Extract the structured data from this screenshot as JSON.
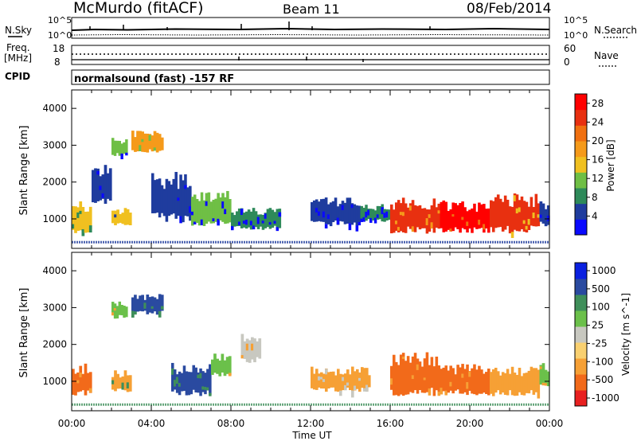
{
  "header": {
    "station": "McMurdo (fitACF)",
    "beam": "Beam 11",
    "date": "08/Feb/2014"
  },
  "noise_panel": {
    "left_label": "N.Sky",
    "right_label": "N.Search",
    "left_ticks": [
      "10^5",
      "10^0"
    ],
    "right_ticks": [
      "10^5",
      "10^0"
    ]
  },
  "freq_panel": {
    "left_label_1": "Freq.",
    "left_label_2": "[MHz]",
    "left_ticks": [
      "18",
      "8"
    ],
    "right_ticks": [
      "60",
      "0"
    ],
    "right_label": "Nave"
  },
  "cpid": {
    "label": "CPID",
    "text": "normalsound (fast) -157 RF"
  },
  "x_axis": {
    "label": "Time UT",
    "ticks": [
      "00:00",
      "04:00",
      "08:00",
      "12:00",
      "16:00",
      "20:00",
      "00:00"
    ]
  },
  "colors": {
    "power": [
      "#0a0aff",
      "#1f3c9e",
      "#2e8a5a",
      "#6fbf45",
      "#f0c020",
      "#f59a1a",
      "#f07010",
      "#e83010",
      "#ff0000"
    ],
    "velocity": [
      "#e82020",
      "#f26a1a",
      "#f6a035",
      "#f9d070",
      "#c8c8c0",
      "#6bc04a",
      "#3f8f5a",
      "#2a4aa0",
      "#0a20e0"
    ]
  },
  "chart_data": [
    {
      "type": "heatmap",
      "panel": "power",
      "title": "",
      "xlabel": "Time UT",
      "ylabel": "Slant Range [km]",
      "xlim": [
        "00:00",
        "24:00"
      ],
      "ylim": [
        200,
        4500
      ],
      "yticks": [
        1000,
        2000,
        3000,
        4000
      ],
      "colorbar": {
        "label": "Power [dB]",
        "ticks": [
          4,
          8,
          12,
          16,
          20,
          24,
          28
        ],
        "range": [
          0,
          30
        ]
      },
      "regions": [
        {
          "t0": 0.0,
          "t1": 1.0,
          "r0": 600,
          "r1": 1500,
          "value": 16
        },
        {
          "t0": 1.0,
          "t1": 2.0,
          "r0": 1400,
          "r1": 2500,
          "value": 4
        },
        {
          "t0": 2.0,
          "t1": 3.0,
          "r0": 800,
          "r1": 1300,
          "value": 14
        },
        {
          "t0": 2.0,
          "t1": 2.8,
          "r0": 2700,
          "r1": 3200,
          "value": 10
        },
        {
          "t0": 3.0,
          "t1": 4.6,
          "r0": 2800,
          "r1": 3400,
          "value": 18
        },
        {
          "t0": 4.0,
          "t1": 6.0,
          "r0": 900,
          "r1": 2300,
          "value": 6
        },
        {
          "t0": 6.0,
          "t1": 8.0,
          "r0": 800,
          "r1": 1800,
          "value": 10
        },
        {
          "t0": 8.0,
          "t1": 10.5,
          "r0": 700,
          "r1": 1300,
          "value": 8
        },
        {
          "t0": 12.0,
          "t1": 14.5,
          "r0": 800,
          "r1": 1600,
          "value": 6
        },
        {
          "t0": 14.5,
          "t1": 16.0,
          "r0": 900,
          "r1": 1400,
          "value": 8
        },
        {
          "t0": 16.0,
          "t1": 18.5,
          "r0": 600,
          "r1": 1600,
          "value": 26
        },
        {
          "t0": 18.5,
          "t1": 21.0,
          "r0": 600,
          "r1": 1500,
          "value": 28
        },
        {
          "t0": 21.0,
          "t1": 23.5,
          "r0": 600,
          "r1": 1700,
          "value": 24
        },
        {
          "t0": 23.5,
          "t1": 24.0,
          "r0": 800,
          "r1": 1500,
          "value": 6
        }
      ]
    },
    {
      "type": "heatmap",
      "panel": "velocity",
      "title": "",
      "xlabel": "Time UT",
      "ylabel": "Slant Range [km]",
      "xlim": [
        "00:00",
        "24:00"
      ],
      "ylim": [
        200,
        4500
      ],
      "yticks": [
        1000,
        2000,
        3000,
        4000
      ],
      "colorbar": {
        "label": "Velocity [m s^-1]",
        "ticks": [
          1000,
          500,
          100,
          25,
          -25,
          -100,
          -500,
          -1000
        ],
        "range": [
          -1000,
          1000
        ]
      },
      "regions": [
        {
          "t0": 0.0,
          "t1": 1.0,
          "r0": 600,
          "r1": 1500,
          "value": -500
        },
        {
          "t0": 2.0,
          "t1": 3.0,
          "r0": 700,
          "r1": 1300,
          "value": -100
        },
        {
          "t0": 2.0,
          "t1": 2.8,
          "r0": 2700,
          "r1": 3200,
          "value": 100
        },
        {
          "t0": 3.0,
          "t1": 4.6,
          "r0": 2800,
          "r1": 3400,
          "value": 800
        },
        {
          "t0": 5.0,
          "t1": 7.0,
          "r0": 600,
          "r1": 1500,
          "value": 800
        },
        {
          "t0": 7.0,
          "t1": 8.0,
          "r0": 1100,
          "r1": 1800,
          "value": 100
        },
        {
          "t0": 8.5,
          "t1": 9.5,
          "r0": 1500,
          "r1": 2300,
          "value": 20
        },
        {
          "t0": 12.0,
          "t1": 15.0,
          "r0": 700,
          "r1": 1400,
          "value": -300
        },
        {
          "t0": 16.0,
          "t1": 18.5,
          "r0": 600,
          "r1": 1800,
          "value": -600
        },
        {
          "t0": 18.5,
          "t1": 21.0,
          "r0": 600,
          "r1": 1500,
          "value": -500
        },
        {
          "t0": 21.0,
          "t1": 23.5,
          "r0": 600,
          "r1": 1400,
          "value": -400
        },
        {
          "t0": 23.5,
          "t1": 24.0,
          "r0": 800,
          "r1": 1500,
          "value": 100
        }
      ]
    }
  ]
}
